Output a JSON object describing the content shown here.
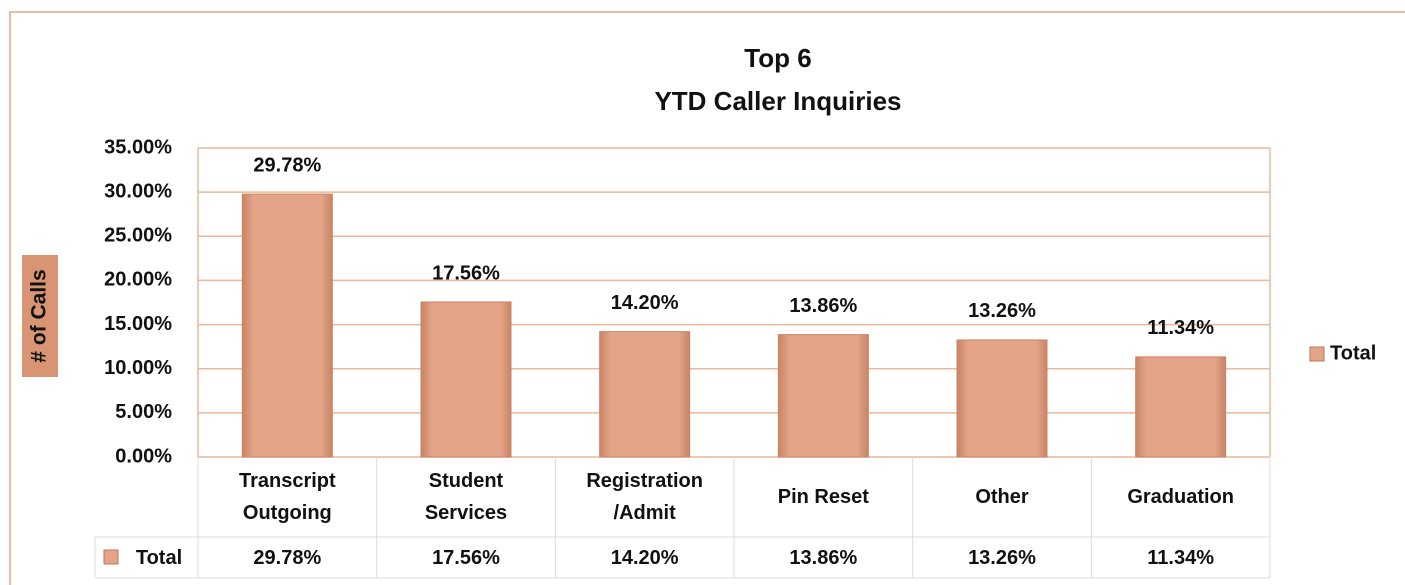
{
  "chart_data": {
    "type": "bar",
    "title": "Top 6",
    "subtitle": "YTD Caller Inquiries",
    "y_label": "# of Calls",
    "categories": [
      "Transcript Outgoing",
      "Student Services",
      "Registration /Admit",
      "Pin Reset",
      "Other",
      "Graduation"
    ],
    "series": [
      {
        "name": "Total",
        "color": "#e3a487",
        "values": [
          29.78,
          17.56,
          14.2,
          13.86,
          13.26,
          11.34
        ],
        "value_labels": [
          "29.78%",
          "17.56%",
          "14.20%",
          "13.86%",
          "13.26%",
          "11.34%"
        ]
      }
    ],
    "ylim": [
      0,
      35
    ],
    "yticks": [
      {
        "value": 0,
        "label": "0.00%"
      },
      {
        "value": 5,
        "label": "5.00%"
      },
      {
        "value": 10,
        "label": "10.00%"
      },
      {
        "value": 15,
        "label": "15.00%"
      },
      {
        "value": 20,
        "label": "20.00%"
      },
      {
        "value": 25,
        "label": "25.00%"
      },
      {
        "value": 30,
        "label": "30.00%"
      },
      {
        "value": 35,
        "label": "35.00%"
      }
    ],
    "grid": true,
    "legend": "right",
    "data_table": true
  }
}
